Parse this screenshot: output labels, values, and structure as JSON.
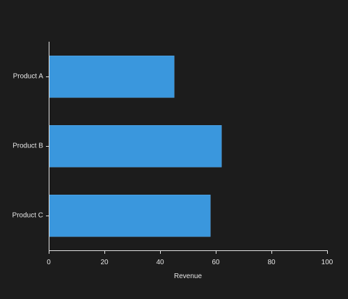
{
  "chart_data": {
    "type": "bar",
    "orientation": "horizontal",
    "categories": [
      "Product A",
      "Product B",
      "Product C"
    ],
    "values": [
      45,
      62,
      58
    ],
    "title": "",
    "xlabel": "Revenue",
    "ylabel": "",
    "xlim": [
      0,
      100
    ],
    "xticks": [
      0,
      20,
      40,
      60,
      80,
      100
    ],
    "grid": false,
    "bar_color": "#3a97dd",
    "background_color": "#1c1c1c",
    "text_color": "#e6e6e6"
  }
}
